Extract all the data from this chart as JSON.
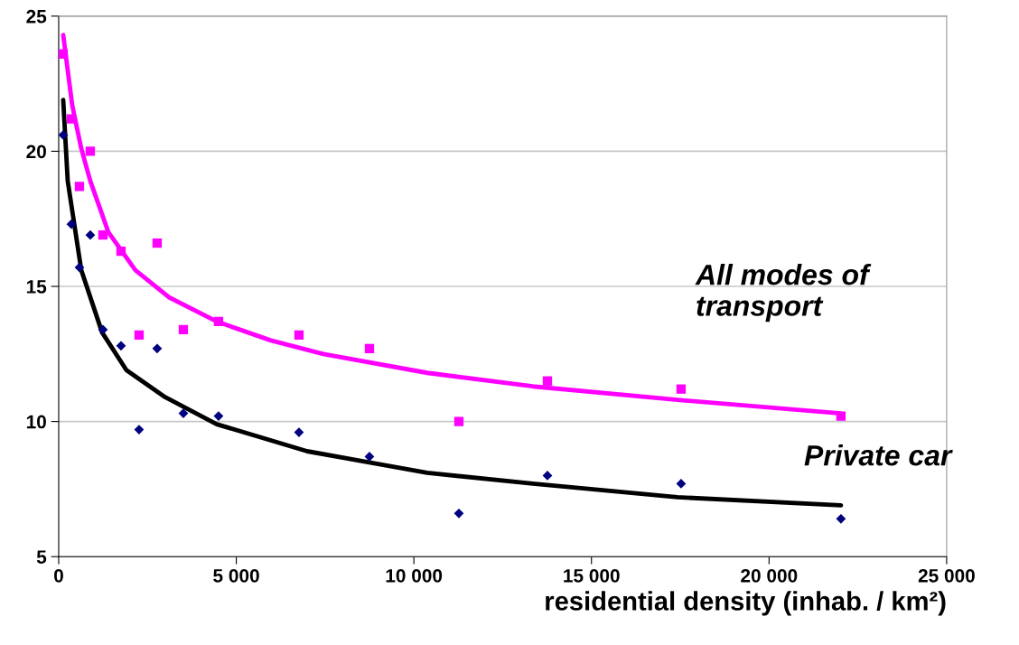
{
  "chart_data": {
    "type": "scatter",
    "xlabel": "residential density (inhab. / km²)",
    "xlim": [
      0,
      25000
    ],
    "ylim": [
      5,
      25
    ],
    "xticks": [
      0,
      {
        "value": 5000,
        "label": "5 000"
      },
      {
        "value": 10000,
        "label": "10 000"
      },
      {
        "value": 15000,
        "label": "15 000"
      },
      {
        "value": 20000,
        "label": "20 000"
      },
      {
        "value": 25000,
        "label": "25 000"
      }
    ],
    "yticks": [
      5,
      10,
      15,
      20,
      25
    ],
    "grid": "y",
    "legend": false,
    "series": [
      {
        "marker": "square",
        "color": "#ff00ff",
        "x": [
          127,
          356,
          585,
          890,
          1246,
          1755,
          2263,
          2772,
          3510,
          4500,
          6765,
          8749,
          11267,
          13760,
          17523,
          22024
        ],
        "values": [
          23.6,
          21.2,
          18.7,
          20.0,
          16.9,
          16.3,
          13.2,
          16.6,
          13.4,
          13.7,
          13.2,
          12.7,
          10.0,
          11.5,
          11.2,
          10.2
        ]
      },
      {
        "marker": "diamond",
        "color": "#000080",
        "x": [
          127,
          356,
          585,
          890,
          1246,
          1755,
          2263,
          2772,
          3510,
          4500,
          6765,
          8749,
          11267,
          13760,
          17523,
          22024
        ],
        "values": [
          20.6,
          17.3,
          15.7,
          16.9,
          13.4,
          12.8,
          9.7,
          12.7,
          10.3,
          10.2,
          9.6,
          8.7,
          6.6,
          8.0,
          7.7,
          6.4
        ]
      },
      {
        "type": "line",
        "marker": "none",
        "color": "#ff00ff",
        "x": [
          127,
          381,
          636,
          890,
          1400,
          2160,
          3100,
          4450,
          5977,
          7450,
          10376,
          13350,
          17420,
          22024
        ],
        "values": [
          24.3,
          21.7,
          20.1,
          18.9,
          17.0,
          15.6,
          14.6,
          13.7,
          13.0,
          12.5,
          11.8,
          11.3,
          10.8,
          10.3
        ]
      },
      {
        "type": "line",
        "marker": "none",
        "color": "#000000",
        "x": [
          127,
          254,
          636,
          1220,
          1907,
          3000,
          4450,
          6994,
          10376,
          13350,
          17420,
          22024
        ],
        "values": [
          21.9,
          18.9,
          15.6,
          13.3,
          11.9,
          10.9,
          9.9,
          8.9,
          8.1,
          7.7,
          7.2,
          6.9
        ]
      }
    ],
    "annotations": [
      "All modes of\ntransport",
      "Private car"
    ]
  }
}
